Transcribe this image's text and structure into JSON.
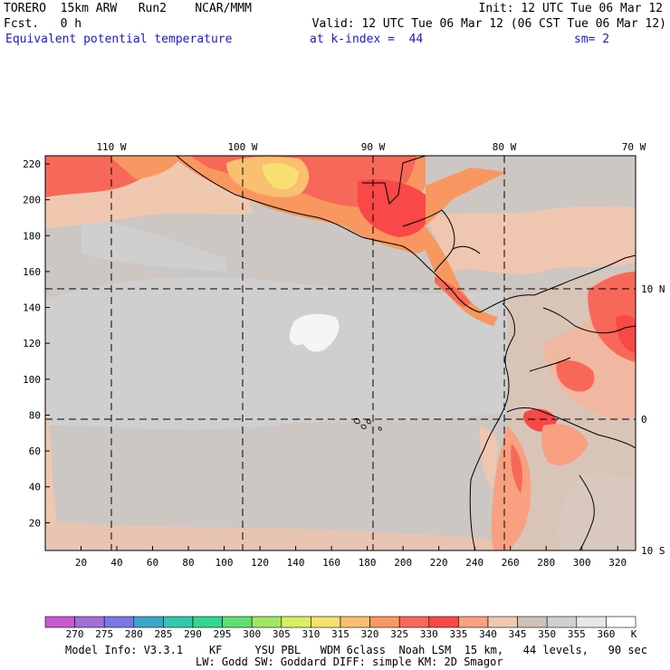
{
  "header": {
    "model": "TORERO  15km ARW   Run2    NCAR/MMM",
    "init": "Init: 12 UTC Tue 06 Mar 12",
    "fcst": "Fcst.   0 h",
    "valid": "Valid: 12 UTC Tue 06 Mar 12 (06 CST Tue 06 Mar 12)",
    "field": "Equivalent potential temperature",
    "kindex": "at k-index =  44",
    "smooth": "sm= 2"
  },
  "map": {
    "top_lon_labels": [
      "110 W",
      "100 W",
      "90 W",
      "80 W",
      "70 W"
    ],
    "right_lat_labels": [
      "10 N",
      "0",
      "10 S"
    ],
    "y_ticks": [
      "220",
      "200",
      "180",
      "160",
      "140",
      "120",
      "100",
      "80",
      "60",
      "40",
      "20"
    ],
    "x_ticks": [
      "20",
      "40",
      "60",
      "80",
      "100",
      "120",
      "140",
      "160",
      "180",
      "200",
      "220",
      "240",
      "260",
      "280",
      "300",
      "320"
    ]
  },
  "colorbar": {
    "levels": [
      "270",
      "275",
      "280",
      "285",
      "290",
      "295",
      "300",
      "305",
      "310",
      "315",
      "320",
      "325",
      "330",
      "335",
      "340",
      "345",
      "350",
      "355",
      "360"
    ],
    "unit": "K",
    "colors": [
      "#c85ad0",
      "#a070d8",
      "#7a78e8",
      "#3aa8c8",
      "#30c8b0",
      "#30d890",
      "#60e070",
      "#a0e860",
      "#d8f060",
      "#f8e070",
      "#f8c070",
      "#f89860",
      "#f86858",
      "#f84848",
      "#f8a080",
      "#f0c8b0",
      "#d0c0b8",
      "#d0d0d0",
      "#e8e8e8",
      "#ffffff"
    ]
  },
  "footer": {
    "line1": "Model Info: V3.3.1    KF     YSU PBL   WDM 6class  Noah LSM  15 km,   44 levels,   90 sec",
    "line2": "LW: Godd SW: Goddard DIFF: simple KM: 2D Smagor"
  }
}
